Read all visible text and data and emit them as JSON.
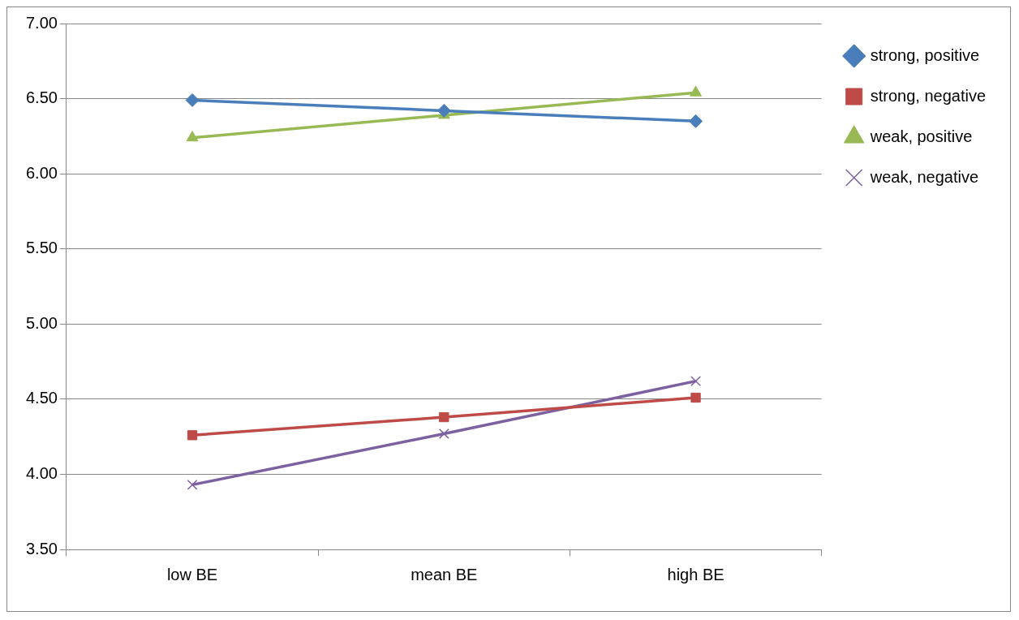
{
  "chart_data": {
    "type": "line",
    "categories": [
      "low BE",
      "mean BE",
      "high BE"
    ],
    "series": [
      {
        "name": "strong, positive",
        "color": "#4a7ebb",
        "marker": "diamond",
        "values": [
          6.49,
          6.42,
          6.35
        ]
      },
      {
        "name": "strong, negative",
        "color": "#be4b48",
        "marker": "square",
        "values": [
          4.26,
          4.38,
          4.51
        ]
      },
      {
        "name": "weak, positive",
        "color": "#98b954",
        "marker": "triangle",
        "values": [
          6.24,
          6.39,
          6.54
        ]
      },
      {
        "name": "weak, negative",
        "color": "#7d60a0",
        "marker": "cross",
        "values": [
          3.93,
          4.27,
          4.62
        ]
      }
    ],
    "ylim": [
      3.5,
      7
    ],
    "yticks": [
      {
        "value": 3.5,
        "label": "3.50"
      },
      {
        "value": 4,
        "label": "4.00"
      },
      {
        "value": 4.5,
        "label": "4.50"
      },
      {
        "value": 5,
        "label": "5.00"
      },
      {
        "value": 5.5,
        "label": "5.50"
      },
      {
        "value": 6,
        "label": "6.00"
      },
      {
        "value": 6.5,
        "label": "6.50"
      },
      {
        "value": 7,
        "label": "7.00"
      }
    ],
    "grid": "y",
    "legend": "right",
    "line_style": "solid"
  }
}
